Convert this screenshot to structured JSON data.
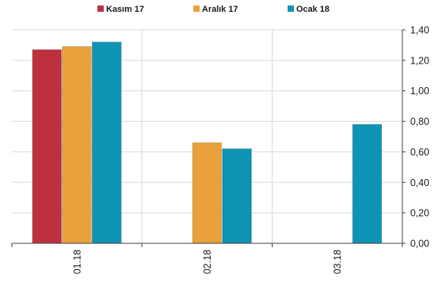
{
  "chart_data": {
    "type": "bar",
    "categories": [
      "01.18",
      "02.18",
      "03.18"
    ],
    "series": [
      {
        "name": "Kasım 17",
        "color": "#be2f3f",
        "values": [
          1.27,
          null,
          null
        ]
      },
      {
        "name": "Aralık 17",
        "color": "#e8a13b",
        "values": [
          1.29,
          0.66,
          null
        ]
      },
      {
        "name": "Ocak 18",
        "color": "#0f93b5",
        "values": [
          1.32,
          0.62,
          0.78
        ]
      }
    ],
    "ylim": [
      0,
      1.4
    ],
    "yticks": [
      "0,00",
      "0,20",
      "0,40",
      "0,60",
      "0,80",
      "1,00",
      "1,20",
      "1,40"
    ],
    "y_axis_side": "right",
    "grid": true,
    "legend_position": "top-center",
    "xlabel": "",
    "ylabel": "",
    "title": ""
  }
}
